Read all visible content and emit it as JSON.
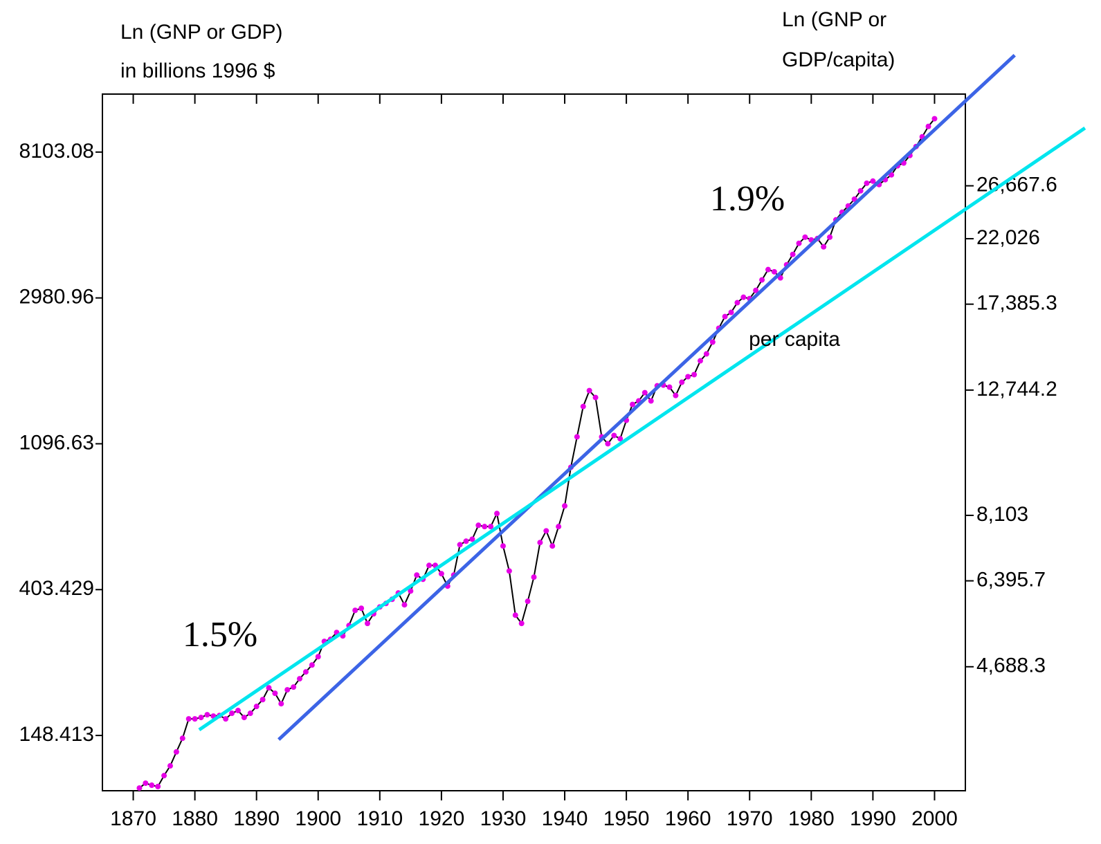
{
  "chart_data": {
    "type": "line",
    "ylabel": [
      "Ln (GNP or GDP)",
      "in billions 1996 $"
    ],
    "y2label": [
      "Ln (GNP or",
      "GDP/capita)"
    ],
    "annotations": [
      "1.9%",
      "1.5%",
      "per capita"
    ],
    "xlim": [
      1865,
      2005
    ],
    "xticks": [
      1870,
      1880,
      1890,
      1900,
      1910,
      1920,
      1930,
      1940,
      1950,
      1960,
      1970,
      1980,
      1990,
      2000
    ],
    "ylim": [
      101.6,
      12060
    ],
    "ylog": true,
    "yticks": [
      148.413,
      403.429,
      1096.63,
      2980.96,
      8103.08
    ],
    "y2lim": [
      2995,
      37150
    ],
    "y2log": true,
    "y2ticks": [
      {
        "value": 4688.3,
        "label": "4,688.3"
      },
      {
        "value": 6395.7,
        "label": "6,395.7"
      },
      {
        "value": 8103,
        "label": "8,103"
      },
      {
        "value": 12744.2,
        "label": "12,744.2"
      },
      {
        "value": 17385.3,
        "label": "17,385.3"
      },
      {
        "value": 22026,
        "label": "22,026"
      },
      {
        "value": 26667.6,
        "label": "26,667.6"
      }
    ],
    "series": [
      {
        "color": "#000000",
        "marker_color": "#e600e6",
        "x": [
          1871,
          1872,
          1873,
          1874,
          1875,
          1876,
          1877,
          1878,
          1879,
          1880,
          1881,
          1882,
          1883,
          1884,
          1885,
          1886,
          1887,
          1888,
          1889,
          1890,
          1891,
          1892,
          1893,
          1894,
          1895,
          1896,
          1897,
          1898,
          1899,
          1900,
          1901,
          1902,
          1903,
          1904,
          1905,
          1906,
          1907,
          1908,
          1909,
          1910,
          1911,
          1912,
          1913,
          1914,
          1915,
          1916,
          1917,
          1918,
          1919,
          1920,
          1921,
          1922,
          1923,
          1924,
          1925,
          1926,
          1927,
          1928,
          1929,
          1930,
          1931,
          1932,
          1933,
          1934,
          1935,
          1936,
          1937,
          1938,
          1939,
          1940,
          1941,
          1942,
          1943,
          1944,
          1945,
          1946,
          1947,
          1948,
          1949,
          1950,
          1951,
          1952,
          1953,
          1954,
          1955,
          1956,
          1957,
          1958,
          1959,
          1960,
          1961,
          1962,
          1963,
          1964,
          1965,
          1966,
          1967,
          1968,
          1969,
          1970,
          1971,
          1972,
          1973,
          1974,
          1975,
          1976,
          1977,
          1978,
          1979,
          1980,
          1981,
          1982,
          1983,
          1984,
          1985,
          1986,
          1987,
          1988,
          1989,
          1990,
          1991,
          1992,
          1993,
          1994,
          1995,
          1996,
          1997,
          1998,
          1999,
          2000
        ],
        "values": [
          103.5,
          107.0,
          105.5,
          104.6,
          112.7,
          120.5,
          132.6,
          145.6,
          166.3,
          166.3,
          167.9,
          171.1,
          169.5,
          170.2,
          166.3,
          172.8,
          176.1,
          167.9,
          172.8,
          181.1,
          189.8,
          205.8,
          198.2,
          184.5,
          203.0,
          206.8,
          219.0,
          229.5,
          240.6,
          254.7,
          282.9,
          286.9,
          300.7,
          293.8,
          315.4,
          350.0,
          355.0,
          320.0,
          341.7,
          358.2,
          366.9,
          377.6,
          394.2,
          363.6,
          399.7,
          445.9,
          433.1,
          476.3,
          476.3,
          449.9,
          413.3,
          445.9,
          549.0,
          562.3,
          570.2,
          627.1,
          621.5,
          621.5,
          679.9,
          544.1,
          458.5,
          338.6,
          320.0,
          372.4,
          439.6,
          557.2,
          603.7,
          544.1,
          621.5,
          716.2,
          933.4,
          1150,
          1416,
          1579,
          1506,
          1150,
          1097,
          1161,
          1135,
          1288,
          1436,
          1471,
          1557,
          1471,
          1632,
          1640,
          1617,
          1527,
          1672,
          1737,
          1762,
          1937,
          2031,
          2202,
          2421,
          2623,
          2700,
          2885,
          2995,
          2968,
          3139,
          3373,
          3621,
          3567,
          3420,
          3742,
          4018,
          4335,
          4521,
          4436,
          4480,
          4232,
          4521,
          5092,
          5364,
          5599,
          5868,
          6213,
          6545,
          6641,
          6486,
          6707,
          6933,
          7377,
          7518,
          7918,
          8417,
          9000,
          9662,
          10186
        ]
      },
      {
        "color": "#3c64e6",
        "x": [
          1893.6,
          2013.0
        ],
        "values": [
          144.3,
          15740
        ]
      },
      {
        "color": "#00e5ee",
        "axis": "y2",
        "x": [
          1880.7,
          2024.4
        ],
        "values": [
          3733,
          32860
        ]
      }
    ]
  }
}
